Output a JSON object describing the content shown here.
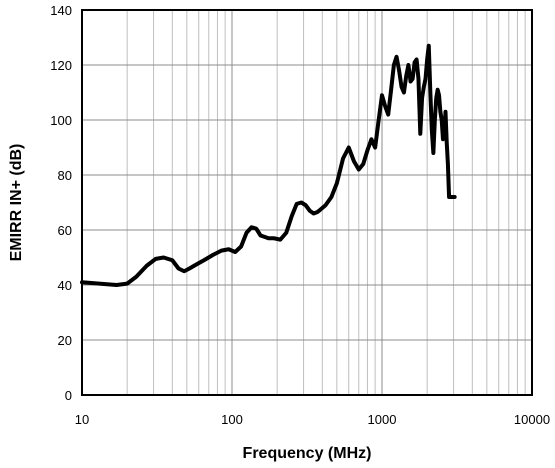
{
  "chart_data": {
    "type": "line",
    "title": "",
    "xlabel": "Frequency (MHz)",
    "ylabel": "EMIRR IN+ (dB)",
    "xscale": "log",
    "xlim": [
      10,
      10000
    ],
    "ylim": [
      0,
      140
    ],
    "grid": true,
    "x_ticks": [
      {
        "value": 10,
        "label": "10"
      },
      {
        "value": 100,
        "label": "100"
      },
      {
        "value": 1000,
        "label": "1000"
      },
      {
        "value": 10000,
        "label": "10000"
      }
    ],
    "y_ticks": [
      {
        "value": 0,
        "label": "0"
      },
      {
        "value": 20,
        "label": "20"
      },
      {
        "value": 40,
        "label": "40"
      },
      {
        "value": 60,
        "label": "60"
      },
      {
        "value": 80,
        "label": "80"
      },
      {
        "value": 100,
        "label": "100"
      },
      {
        "value": 120,
        "label": "120"
      },
      {
        "value": 140,
        "label": "140"
      }
    ],
    "series": [
      {
        "color": "#000000",
        "x": [
          10,
          13,
          17,
          20,
          23,
          27,
          31,
          35,
          40,
          44,
          48,
          52,
          58,
          65,
          75,
          85,
          95,
          105,
          115,
          125,
          135,
          145,
          155,
          165,
          175,
          190,
          210,
          230,
          250,
          270,
          290,
          310,
          330,
          350,
          370,
          390,
          420,
          460,
          500,
          550,
          600,
          650,
          700,
          750,
          800,
          850,
          900,
          950,
          1000,
          1050,
          1100,
          1150,
          1200,
          1250,
          1300,
          1350,
          1400,
          1450,
          1500,
          1550,
          1600,
          1650,
          1700,
          1750,
          1800,
          1850,
          1900,
          1950,
          2000,
          2050,
          2100,
          2150,
          2200,
          2250,
          2300,
          2350,
          2400,
          2450,
          2500,
          2550,
          2600,
          2650,
          2700,
          2750,
          2800,
          2850,
          2900,
          2950,
          3000,
          3050
        ],
        "y": [
          41,
          40.5,
          40,
          40.5,
          43,
          47,
          49.5,
          50,
          49,
          46,
          45,
          46,
          47.5,
          49,
          51,
          52.5,
          53,
          52,
          54,
          59,
          61,
          60.5,
          58,
          57.5,
          57,
          57,
          56.5,
          59,
          65,
          69.5,
          70,
          69,
          67,
          66,
          66.5,
          67.5,
          69,
          72,
          77,
          86,
          90,
          85,
          82,
          84,
          89,
          93,
          90,
          100,
          109,
          105,
          102,
          111,
          120,
          123,
          118,
          112,
          110,
          116,
          120,
          114,
          115,
          121,
          122,
          115,
          95,
          108,
          112,
          115,
          122,
          127,
          110,
          96,
          88,
          100,
          108,
          111,
          109,
          103,
          100,
          93,
          94,
          103,
          92,
          84,
          72,
          72,
          72,
          72,
          72,
          72
        ]
      }
    ]
  }
}
